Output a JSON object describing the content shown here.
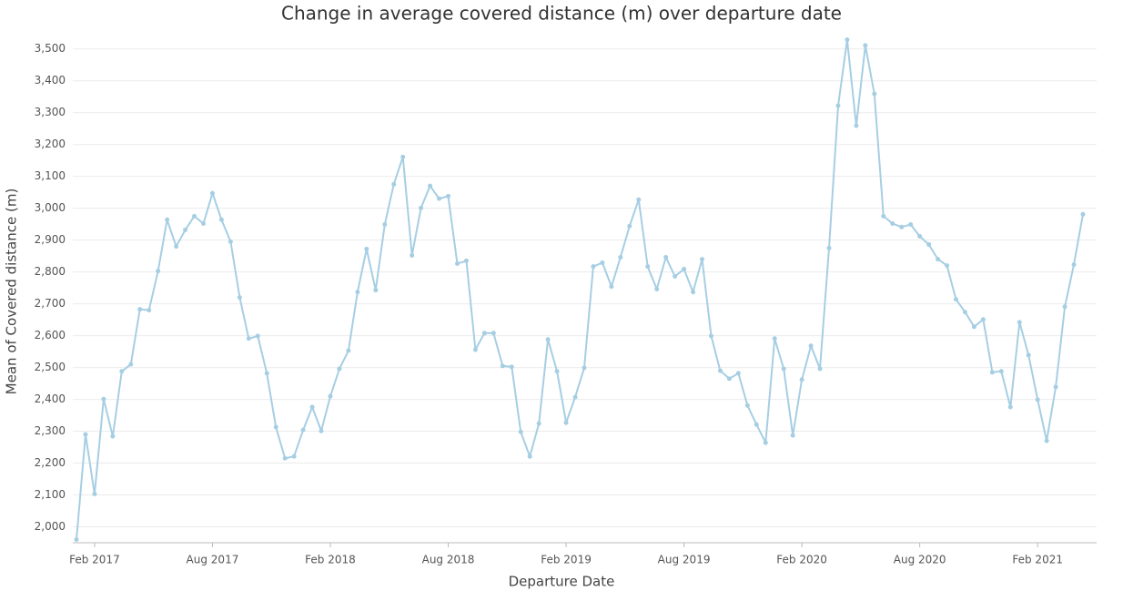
{
  "chart_data": {
    "type": "line",
    "title": "Change in average covered distance (m) over departure date",
    "x_label": "Departure Date",
    "y_label": "Mean of Covered distance (m)",
    "categories": [
      null,
      null,
      "Feb 2017",
      null,
      null,
      null,
      null,
      null,
      null,
      null,
      null,
      null,
      null,
      null,
      null,
      "Aug 2017",
      null,
      null,
      null,
      null,
      null,
      null,
      null,
      null,
      null,
      null,
      null,
      null,
      "Feb 2018",
      null,
      null,
      null,
      null,
      null,
      null,
      null,
      null,
      null,
      null,
      null,
      null,
      "Aug 2018",
      null,
      null,
      null,
      null,
      null,
      null,
      null,
      null,
      null,
      null,
      null,
      null,
      "Feb 2019",
      null,
      null,
      null,
      null,
      null,
      null,
      null,
      null,
      null,
      null,
      null,
      null,
      "Aug 2019",
      null,
      null,
      null,
      null,
      null,
      null,
      null,
      null,
      null,
      null,
      null,
      null,
      "Feb 2020",
      null,
      null,
      null,
      null,
      null,
      null,
      null,
      null,
      null,
      null,
      null,
      null,
      "Aug 2020",
      null,
      null,
      null,
      null,
      null,
      null,
      null,
      null,
      null,
      null,
      null,
      null,
      "Feb 2021",
      null,
      null,
      null,
      null,
      null
    ],
    "values": [
      1960,
      2290,
      2103,
      2401,
      2284,
      2488,
      2510,
      2683,
      2680,
      2803,
      2964,
      2880,
      2932,
      2975,
      2952,
      3047,
      2964,
      2895,
      2720,
      2591,
      2599,
      2482,
      2313,
      2215,
      2221,
      2304,
      2376,
      2301,
      2410,
      2496,
      2553,
      2737,
      2872,
      2743,
      2949,
      3075,
      3161,
      2852,
      3001,
      3070,
      3030,
      3038,
      2826,
      2835,
      2556,
      2608,
      2608,
      2505,
      2502,
      2298,
      2221,
      2324,
      2588,
      2488,
      2327,
      2407,
      2499,
      2817,
      2829,
      2754,
      2846,
      2944,
      3027,
      2817,
      2746,
      2846,
      2786,
      2809,
      2737,
      2840,
      2599,
      2490,
      2465,
      2482,
      2381,
      2321,
      2264,
      2591,
      2496,
      2287,
      2462,
      2568,
      2496,
      2875,
      3322,
      3529,
      3259,
      3511,
      3359,
      2975,
      2952,
      2941,
      2949,
      2912,
      2886,
      2840,
      2820,
      2714,
      2674,
      2628,
      2651,
      2485,
      2488,
      2376,
      2642,
      2539,
      2399,
      2270,
      2439,
      2691,
      2823,
      2981
    ],
    "color": "#a6cee3",
    "ylim": [
      1950,
      3545
    ],
    "yticks": [
      {
        "value": 2000,
        "label": "2,000"
      },
      {
        "value": 2100,
        "label": "2,100"
      },
      {
        "value": 2200,
        "label": "2,200"
      },
      {
        "value": 2300,
        "label": "2,300"
      },
      {
        "value": 2400,
        "label": "2,400"
      },
      {
        "value": 2500,
        "label": "2,500"
      },
      {
        "value": 2600,
        "label": "2,600"
      },
      {
        "value": 2700,
        "label": "2,700"
      },
      {
        "value": 2800,
        "label": "2,800"
      },
      {
        "value": 2900,
        "label": "2,900"
      },
      {
        "value": 3000,
        "label": "3,000"
      },
      {
        "value": 3100,
        "label": "3,100"
      },
      {
        "value": 3200,
        "label": "3,200"
      },
      {
        "value": 3300,
        "label": "3,300"
      },
      {
        "value": 3400,
        "label": "3,400"
      },
      {
        "value": 3500,
        "label": "3,500"
      }
    ],
    "grid": true
  }
}
